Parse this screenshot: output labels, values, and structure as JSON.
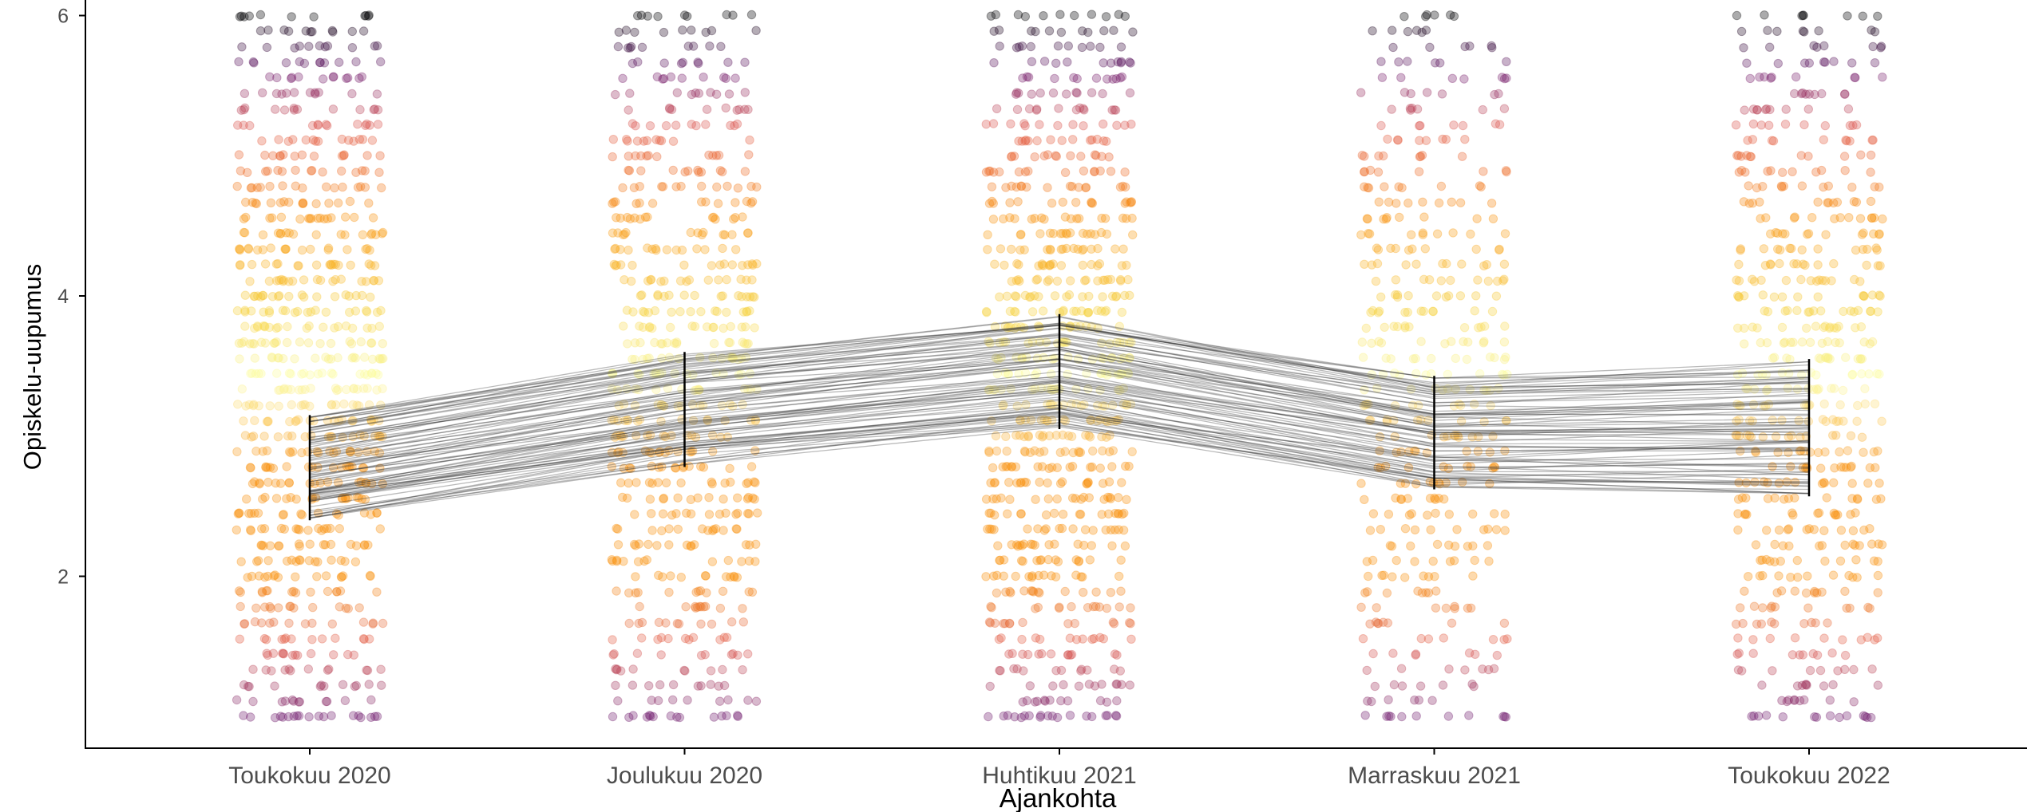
{
  "chart_data": {
    "type": "scatter",
    "title": "",
    "xlabel": "Ajankohta",
    "ylabel": "Opiskelu-uupumus",
    "categories": [
      "Toukokuu 2020",
      "Joulukuu 2020",
      "Huhtikuu 2021",
      "Marraskuu 2021",
      "Toukokuu 2022"
    ],
    "ylim": [
      0.75,
      6.0
    ],
    "yticks": [
      2,
      4,
      6
    ],
    "grid": false,
    "legend": "none",
    "response_scale": {
      "min": 1,
      "max": 6,
      "step": 0.1111
    },
    "jitter_dot_density_by_category": [
      1.0,
      0.8,
      1.0,
      0.55,
      0.75
    ],
    "interval_bars": [
      {
        "category": "Toukokuu 2020",
        "low": 2.4,
        "high": 3.15
      },
      {
        "category": "Joulukuu 2020",
        "low": 2.78,
        "high": 3.6
      },
      {
        "category": "Huhtikuu 2021",
        "low": 3.05,
        "high": 3.87
      },
      {
        "category": "Marraskuu 2021",
        "low": 2.62,
        "high": 3.43
      },
      {
        "category": "Toukokuu 2022",
        "low": 2.57,
        "high": 3.55
      }
    ],
    "trajectory_count": 80,
    "colors": {
      "points_low": "#701c6e",
      "points_mid_low": "#e0594c",
      "points_mid": "#f98e09",
      "points_mid_high": "#f7d03c",
      "points_peak": "#fcffa4",
      "points_high": "#ed6925",
      "points_top_purple": "#6a176e",
      "points_top": "#000004",
      "trajectory_line": "#3a3a3a",
      "interval_bar": "#000000",
      "axis": "#000000"
    }
  }
}
